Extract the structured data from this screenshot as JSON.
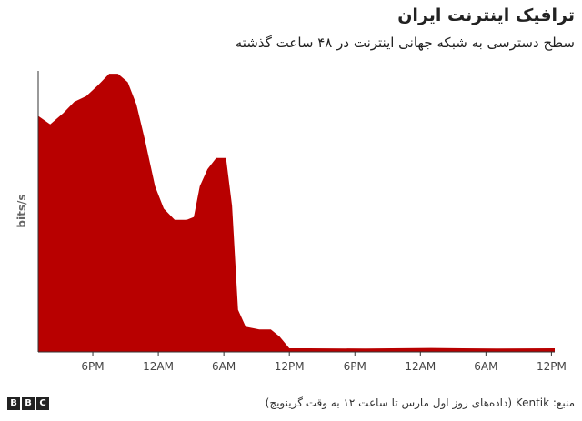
{
  "chart_data": {
    "type": "area",
    "title": "ترافیک اینترنت ایران",
    "subtitle": "سطح دسترسی به شبکه جهانی اینترنت در ۴۸ ساعت گذشته",
    "y_label": "bits/s",
    "source": "منبع: Kentik (داده‌های روز اول مارس تا ساعت ۱۲ به وقت گرینویچ)",
    "logo": [
      "B",
      "B",
      "C"
    ],
    "color": "#b80000",
    "x": [
      0,
      1.1,
      2.3,
      3.3,
      4.4,
      5.5,
      6.5,
      7.3,
      8.2,
      9,
      9.8,
      10.7,
      11.5,
      12.5,
      13.6,
      14.25,
      14.8,
      15.5,
      16.3,
      17.2,
      17.75,
      18.3,
      19,
      20.25,
      21.3,
      22.1,
      23,
      24.8,
      30,
      36,
      42,
      47.3
    ],
    "values": [
      84,
      81,
      85,
      89,
      91,
      95,
      99,
      99,
      96,
      88,
      75,
      59,
      51,
      47,
      47,
      48,
      59,
      65,
      69,
      69,
      52,
      15,
      9,
      8,
      8,
      5.5,
      1.3,
      1.3,
      1.2,
      1.4,
      1.2,
      1.3
    ],
    "xlim": [
      0,
      47.3
    ],
    "ylim": [
      0,
      100
    ],
    "xticks": [
      {
        "value": 5,
        "label": "6PM"
      },
      {
        "value": 11,
        "label": "12AM"
      },
      {
        "value": 17,
        "label": "6AM"
      },
      {
        "value": 23,
        "label": "12PM"
      },
      {
        "value": 29,
        "label": "6PM"
      },
      {
        "value": 35,
        "label": "12AM"
      },
      {
        "value": 41,
        "label": "6AM"
      },
      {
        "value": 47,
        "label": "12PM"
      }
    ]
  }
}
